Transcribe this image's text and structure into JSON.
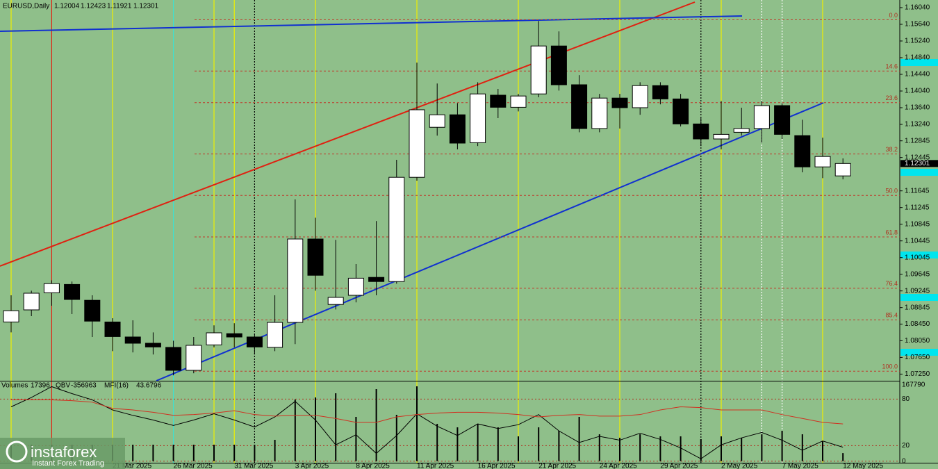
{
  "chart_data": {
    "type": "candlestick",
    "title": "EURUSD,Daily",
    "categories": [
      null,
      null,
      null,
      null,
      null,
      "21 Mar 2025",
      null,
      null,
      "26 Mar 2025",
      null,
      null,
      "31 Mar 2025",
      null,
      null,
      "3 Apr 2025",
      null,
      null,
      "8 Apr 2025",
      null,
      null,
      "11 Apr 2025",
      null,
      null,
      "16 Apr 2025",
      null,
      null,
      "21 Apr 2025",
      null,
      null,
      "24 Apr 2025",
      null,
      null,
      "29 Apr 2025",
      null,
      null,
      "2 May 2025",
      null,
      null,
      "7 May 2025",
      null,
      null,
      "12 May 2025"
    ],
    "open": [
      1.085,
      1.0879,
      1.092,
      1.094,
      1.0902,
      1.085,
      1.0814,
      1.0799,
      1.0789,
      1.0734,
      1.0795,
      1.0822,
      1.0814,
      1.0789,
      1.0849,
      1.1049,
      1.0892,
      1.0914,
      1.0957,
      1.0947,
      1.1197,
      1.1317,
      1.1347,
      1.128,
      1.1394,
      1.1365,
      1.1397,
      1.1512,
      1.1419,
      1.1314,
      1.1387,
      1.1364,
      1.1417,
      1.1385,
      1.1325,
      1.1289,
      1.1305,
      1.1314,
      1.1369,
      1.1297,
      1.1222,
      1.12004
    ],
    "high": [
      1.0914,
      1.0925,
      1.095,
      1.0947,
      1.0914,
      1.0859,
      1.0854,
      1.0825,
      1.0805,
      1.0814,
      1.0842,
      1.0847,
      1.0822,
      1.0914,
      1.1144,
      1.11,
      1.1047,
      1.0989,
      1.1092,
      1.1239,
      1.1472,
      1.1422,
      1.1375,
      1.1425,
      1.1409,
      1.1397,
      1.1572,
      1.1547,
      1.1442,
      1.1397,
      1.1397,
      1.1425,
      1.1425,
      1.1397,
      1.1339,
      1.138,
      1.1364,
      1.138,
      1.1375,
      1.1335,
      1.1292,
      1.12423
    ],
    "low": [
      1.0825,
      1.0864,
      1.0889,
      1.0869,
      1.0814,
      1.078,
      1.0777,
      1.0772,
      1.0722,
      1.0727,
      1.0789,
      1.0789,
      1.0772,
      1.078,
      1.0797,
      1.0925,
      1.088,
      1.0897,
      1.0914,
      1.0942,
      1.1189,
      1.1297,
      1.1264,
      1.1272,
      1.1339,
      1.1355,
      1.1389,
      1.1405,
      1.1305,
      1.1305,
      1.1314,
      1.1347,
      1.1372,
      1.1319,
      1.1272,
      1.1264,
      1.1297,
      1.128,
      1.1289,
      1.1209,
      1.1195,
      1.11921
    ],
    "close": [
      1.0877,
      1.0919,
      1.0942,
      1.0904,
      1.0852,
      1.0815,
      1.0799,
      1.079,
      1.0734,
      1.0794,
      1.0824,
      1.0814,
      1.079,
      1.0849,
      1.1049,
      1.0962,
      1.0909,
      1.0955,
      1.0947,
      1.1197,
      1.1359,
      1.1347,
      1.1279,
      1.1397,
      1.1365,
      1.1392,
      1.1512,
      1.1419,
      1.1314,
      1.1387,
      1.1364,
      1.1417,
      1.1385,
      1.1325,
      1.1289,
      1.13,
      1.1314,
      1.1369,
      1.13,
      1.1222,
      1.1247,
      1.12301
    ],
    "up_color": "#ffffff",
    "down_color": "#000000",
    "ylim": [
      1.0709,
      1.16223
    ],
    "yticks": [
      {
        "value": 1.0725,
        "label": "1.07250"
      },
      {
        "value": 1.0765,
        "label": "1.07650"
      },
      {
        "value": 1.0805,
        "label": "1.08050"
      },
      {
        "value": 1.0845,
        "label": "1.08450"
      },
      1.08845,
      1.09245,
      1.09645,
      1.10045,
      1.10445,
      1.10845,
      1.11245,
      1.11645,
      1.12445,
      1.12845,
      {
        "value": 1.1324,
        "label": "1.13240"
      },
      {
        "value": 1.1364,
        "label": "1.13640"
      },
      {
        "value": 1.1404,
        "label": "1.14040"
      },
      {
        "value": 1.1444,
        "label": "1.14440"
      },
      {
        "value": 1.1484,
        "label": "1.14840"
      },
      {
        "value": 1.1524,
        "label": "1.15240"
      },
      {
        "value": 1.1564,
        "label": "1.15640"
      },
      {
        "value": 1.1604,
        "label": "1.16040"
      }
    ],
    "fibonacci": {
      "high": 1.1575,
      "low": 1.0732,
      "color": "#c0392b",
      "levels": [
        {
          "value": 0,
          "label": "0.0"
        },
        14.6,
        23.6,
        38.2,
        {
          "value": 50,
          "label": "50.0"
        },
        61.8,
        76.4,
        85.4,
        {
          "value": 100,
          "label": "100.0"
        }
      ]
    },
    "indicator": {
      "volume_label": "Volumes",
      "qbv_label": "QBV",
      "qbv": -356963,
      "mfi_label": "MFI(16)",
      "mfi_value": 43.6796,
      "volumes": [
        35600,
        35600,
        35600,
        35600,
        35600,
        35600,
        35600,
        35600,
        35600,
        35600,
        35600,
        35600,
        35600,
        46100,
        133200,
        137700,
        146700,
        95700,
        155800,
        100200,
        161800,
        80700,
        73100,
        80700,
        73100,
        53600,
        73100,
        65600,
        95700,
        58100,
        50500,
        58100,
        53600,
        53600,
        47600,
        53600,
        50500,
        58100,
        65600,
        58100,
        43000,
        17396
      ],
      "volume_ylim": [
        0,
        167790
      ],
      "y2lim": [
        0,
        100
      ],
      "y2ticks": [
        0,
        20,
        80
      ],
      "series": [
        {
          "color": "#000000",
          "values": [
            70,
            82,
            96,
            87,
            79,
            66,
            59,
            53,
            46,
            53,
            61,
            53,
            44,
            57,
            77,
            53,
            21,
            34,
            10,
            33,
            61,
            45,
            33,
            48,
            42,
            47,
            60,
            39,
            24,
            32,
            27,
            36,
            28,
            17,
            3,
            21,
            30,
            37,
            27,
            14,
            26,
            18
          ]
        },
        {
          "color": "#d03020",
          "values": [
            79,
            79,
            79,
            78,
            76,
            68,
            66,
            63,
            59,
            60,
            62,
            65,
            60,
            58,
            59,
            59,
            55,
            50,
            50,
            57,
            60,
            62,
            63,
            63,
            62,
            60,
            57,
            59,
            60,
            58,
            58,
            60,
            66,
            70,
            69,
            66,
            66,
            66,
            60,
            55,
            50,
            48
          ]
        }
      ]
    }
  },
  "logo": {
    "brand": "instaforex",
    "tagline": "Instant Forex Trading"
  }
}
